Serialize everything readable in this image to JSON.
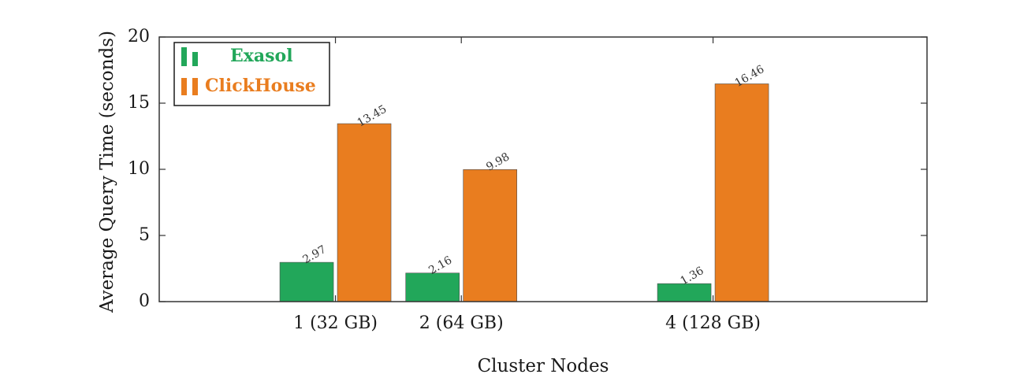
{
  "chart_data": {
    "type": "bar",
    "categories": [
      "1 (32 GB)",
      "2 (64 GB)",
      "4 (128 GB)"
    ],
    "x": [
      1,
      2,
      4
    ],
    "xlim": [
      -0.4,
      5.7
    ],
    "ylim": [
      0,
      20
    ],
    "yticks": [
      0,
      5,
      10,
      15,
      20
    ],
    "xlabel": "Cluster Nodes",
    "ylabel": "Average Query Time (seconds)",
    "grid": false,
    "legend_position": "top-left",
    "series": [
      {
        "name": "Exasol",
        "values": [
          2.97,
          2.16,
          1.36
        ],
        "labels": [
          "2.97",
          "2.16",
          "1.36"
        ],
        "color": "#22a75a"
      },
      {
        "name": "ClickHouse",
        "values": [
          13.45,
          9.98,
          16.46
        ],
        "labels": [
          "13.45",
          "9.98",
          "16.46"
        ],
        "color": "#e97d1f"
      }
    ]
  }
}
